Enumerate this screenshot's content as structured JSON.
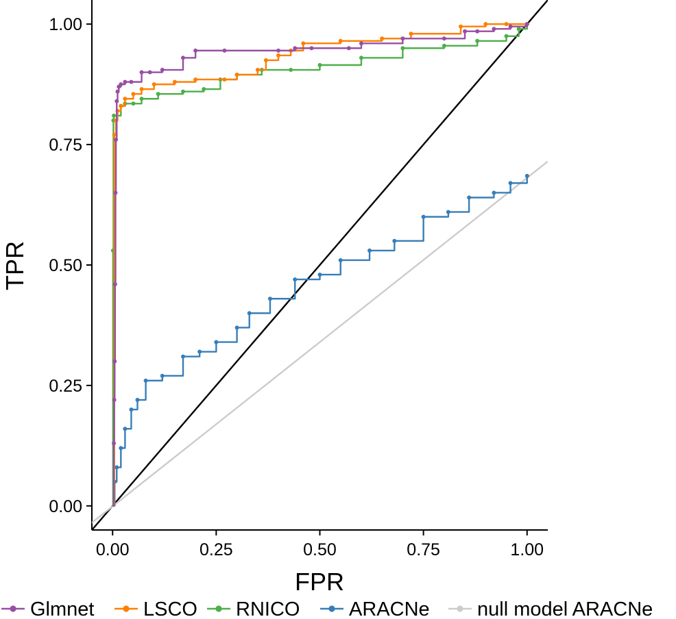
{
  "chart_data": {
    "type": "line",
    "title": "",
    "xlabel": "FPR",
    "ylabel": "TPR",
    "xlim": [
      -0.05,
      1.05
    ],
    "ylim": [
      -0.05,
      1.05
    ],
    "x_ticks": [
      "0.00",
      "0.25",
      "0.50",
      "0.75",
      "1.00"
    ],
    "y_ticks": [
      "0.00",
      "0.25",
      "0.50",
      "0.75",
      "1.00"
    ],
    "x_tick_values": [
      0,
      0.25,
      0.5,
      0.75,
      1.0
    ],
    "y_tick_values": [
      0,
      0.25,
      0.5,
      0.75,
      1.0
    ],
    "grid": false,
    "legend_position": "bottom",
    "diagonal_reference": {
      "x": [
        -0.05,
        1.05
      ],
      "y": [
        -0.05,
        1.05
      ],
      "color": "#000000"
    },
    "series": [
      {
        "name": "Glmnet",
        "color": "#984EA3",
        "x": [
          0,
          0.003,
          0.004,
          0.005,
          0.006,
          0.007,
          0.008,
          0.01,
          0.012,
          0.015,
          0.02,
          0.03,
          0.045,
          0.07,
          0.09,
          0.12,
          0.17,
          0.2,
          0.27,
          0.4,
          0.44,
          0.48,
          0.57,
          0.6,
          0.7,
          0.8,
          0.85,
          0.88,
          0.92,
          0.96,
          1.0
        ],
        "y": [
          0,
          0.13,
          0.22,
          0.3,
          0.46,
          0.65,
          0.76,
          0.84,
          0.86,
          0.87,
          0.875,
          0.88,
          0.88,
          0.9,
          0.9,
          0.905,
          0.93,
          0.945,
          0.945,
          0.945,
          0.95,
          0.95,
          0.95,
          0.96,
          0.97,
          0.97,
          0.985,
          0.985,
          0.99,
          0.995,
          1.0
        ]
      },
      {
        "name": "LSCO",
        "color": "#FF7F00",
        "x": [
          0,
          0.004,
          0.008,
          0.012,
          0.02,
          0.03,
          0.05,
          0.07,
          0.1,
          0.15,
          0.2,
          0.27,
          0.3,
          0.35,
          0.37,
          0.4,
          0.43,
          0.46,
          0.55,
          0.65,
          0.72,
          0.84,
          0.9,
          0.95,
          1.0
        ],
        "y": [
          0,
          0.77,
          0.8,
          0.82,
          0.83,
          0.845,
          0.855,
          0.865,
          0.875,
          0.88,
          0.885,
          0.885,
          0.895,
          0.905,
          0.925,
          0.935,
          0.945,
          0.96,
          0.965,
          0.97,
          0.98,
          0.995,
          1.0,
          1.0,
          1.0
        ]
      },
      {
        "name": "RNICO",
        "color": "#4DAF4A",
        "x": [
          0,
          0.001,
          0.002,
          0.003,
          0.02,
          0.03,
          0.05,
          0.07,
          0.11,
          0.17,
          0.22,
          0.26,
          0.3,
          0.36,
          0.43,
          0.5,
          0.6,
          0.7,
          0.8,
          0.88,
          0.95,
          0.98,
          1.0
        ],
        "y": [
          0,
          0.53,
          0.8,
          0.81,
          0.83,
          0.835,
          0.835,
          0.845,
          0.855,
          0.86,
          0.865,
          0.885,
          0.895,
          0.905,
          0.905,
          0.915,
          0.93,
          0.95,
          0.955,
          0.965,
          0.975,
          0.99,
          1.0
        ]
      },
      {
        "name": "ARACNe",
        "color": "#377EB8",
        "x": [
          0,
          0.005,
          0.01,
          0.02,
          0.03,
          0.045,
          0.06,
          0.08,
          0.12,
          0.17,
          0.21,
          0.25,
          0.3,
          0.33,
          0.38,
          0.44,
          0.5,
          0.55,
          0.62,
          0.68,
          0.75,
          0.81,
          0.86,
          0.92,
          0.96,
          1.0
        ],
        "y": [
          0,
          0.05,
          0.08,
          0.12,
          0.16,
          0.2,
          0.22,
          0.26,
          0.27,
          0.31,
          0.32,
          0.34,
          0.37,
          0.4,
          0.43,
          0.47,
          0.48,
          0.51,
          0.53,
          0.55,
          0.6,
          0.61,
          0.64,
          0.65,
          0.67,
          0.685
        ]
      },
      {
        "name": "null model ARACNe",
        "color": "#CCCCCC",
        "x": [
          -0.05,
          1.05
        ],
        "y": [
          -0.035,
          0.715
        ]
      }
    ]
  }
}
